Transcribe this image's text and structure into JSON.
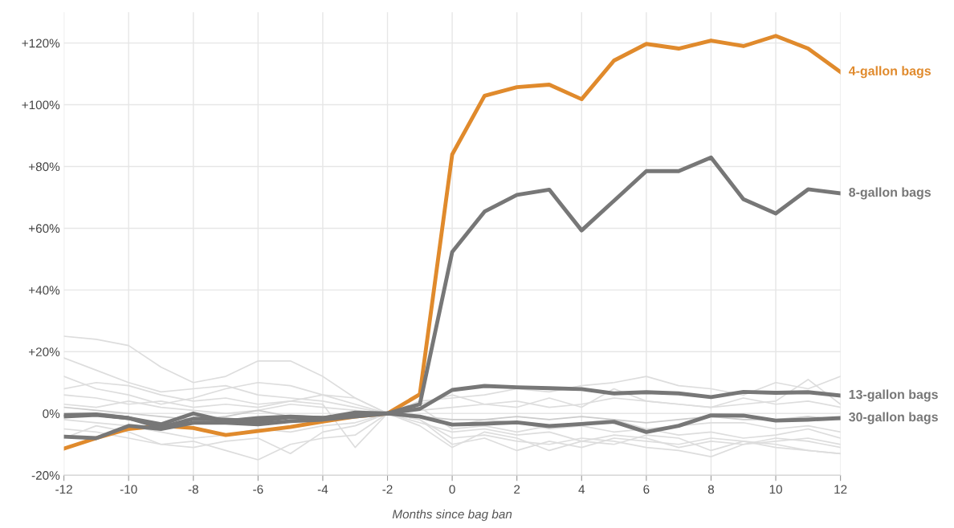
{
  "chart_data": {
    "type": "line",
    "xlabel": "Months since bag ban",
    "x": [
      -12,
      -11,
      -10,
      -9,
      -8,
      -7,
      -6,
      -5,
      -4,
      -3,
      -2,
      -1,
      0,
      1,
      2,
      3,
      4,
      5,
      6,
      7,
      8,
      9,
      10,
      11,
      12
    ],
    "xlim": [
      -12,
      12
    ],
    "xticks": [
      -12,
      -10,
      -8,
      -6,
      -4,
      -2,
      0,
      2,
      4,
      6,
      8,
      10,
      12
    ],
    "ylim": [
      -20,
      130
    ],
    "yticks": [
      {
        "value": -20,
        "label": "-20%"
      },
      {
        "value": 0,
        "label": "0%"
      },
      {
        "value": 20,
        "label": "+20%"
      },
      {
        "value": 40,
        "label": "+40%"
      },
      {
        "value": 60,
        "label": "+60%"
      },
      {
        "value": 80,
        "label": "+80%"
      },
      {
        "value": 100,
        "label": "+100%"
      },
      {
        "value": 120,
        "label": "+120%"
      }
    ],
    "grid": true,
    "marker": "none",
    "line_style": "solid",
    "series": [
      {
        "color": "#dddddd",
        "values": [
          25,
          24,
          22,
          15,
          10,
          12,
          17,
          17,
          12,
          5,
          0,
          2,
          -5,
          -4,
          -6,
          -4,
          -3,
          -2,
          -5,
          -4,
          -3,
          -3,
          -5,
          -4,
          -6
        ]
      },
      {
        "color": "#dddddd",
        "values": [
          12,
          8,
          6,
          3,
          5,
          8,
          10,
          9,
          6,
          3,
          0,
          -2,
          -10,
          -8,
          -12,
          -9,
          -11,
          -8,
          -9,
          -10,
          -8,
          -9,
          -10,
          -12,
          -13
        ]
      },
      {
        "color": "#dddddd",
        "values": [
          -5,
          -6,
          -8,
          -10,
          -9,
          -12,
          -15,
          -10,
          -8,
          -7,
          0,
          -3,
          -6,
          -5,
          -7,
          -6,
          -9,
          -7,
          -8,
          -11,
          -9,
          -10,
          -8,
          -9,
          -11
        ]
      },
      {
        "color": "#dddddd",
        "values": [
          8,
          10,
          9,
          6,
          4,
          5,
          3,
          4,
          6,
          5,
          0,
          4,
          5,
          6,
          8,
          7,
          9,
          10,
          12,
          9,
          8,
          6,
          10,
          8,
          12
        ]
      },
      {
        "color": "#dddddd",
        "values": [
          3,
          2,
          4,
          2,
          1,
          0,
          1,
          3,
          2,
          1,
          0,
          1,
          2,
          3,
          4,
          2,
          3,
          5,
          4,
          3,
          2,
          3,
          4,
          11,
          3
        ]
      },
      {
        "color": "#dddddd",
        "values": [
          18,
          14,
          10,
          7,
          8,
          9,
          6,
          5,
          4,
          2,
          0,
          -1,
          -4,
          -2,
          -3,
          -5,
          -4,
          -6,
          -5,
          -7,
          -6,
          -8,
          -7,
          -5,
          -8
        ]
      },
      {
        "color": "#dddddd",
        "values": [
          -2,
          -3,
          -4,
          -6,
          -8,
          -7,
          -5,
          -6,
          -4,
          -3,
          0,
          -2,
          -8,
          -7,
          -9,
          -10,
          -8,
          -9,
          -11,
          -12,
          -14,
          -10,
          -9,
          -8,
          -10
        ]
      },
      {
        "color": "#dddddd",
        "values": [
          6,
          5,
          3,
          4,
          2,
          3,
          2,
          4,
          3,
          -11,
          0,
          3,
          6,
          3,
          2,
          5,
          2,
          8,
          4,
          3,
          2,
          5,
          3,
          4,
          2
        ]
      },
      {
        "color": "#dddddd",
        "values": [
          -8,
          -4,
          -6,
          -10,
          -11,
          -9,
          -8,
          -13,
          -6,
          -4,
          0,
          -4,
          -11,
          -6,
          -8,
          -12,
          -9,
          -10,
          -7,
          -8,
          -12,
          -9,
          -11,
          -12,
          -13
        ]
      },
      {
        "color": "#cccccc",
        "values": [
          2,
          1,
          0,
          -1,
          -2,
          -1,
          1,
          -1,
          -1,
          0,
          0,
          -1,
          -2,
          -2,
          -1,
          -2,
          -1,
          -2,
          -3,
          -2,
          -1,
          -2,
          -2,
          -1,
          -2
        ]
      },
      {
        "name": "4-gallon bags",
        "color": "#e08a2c",
        "values": [
          -11.4,
          -8,
          -5,
          -4,
          -4.7,
          -7,
          -5.7,
          -4.4,
          -2.6,
          -1,
          0,
          6.2,
          83.9,
          102.9,
          105.7,
          106.5,
          101.8,
          114.3,
          119.7,
          118.2,
          120.8,
          119,
          122.3,
          118.2,
          110.6
        ]
      },
      {
        "name": "8-gallon bags",
        "color": "#777777",
        "values": [
          -7.5,
          -8,
          -4,
          -5,
          -3,
          -3,
          -3.5,
          -2.5,
          -2,
          -1,
          0,
          3,
          52.3,
          65.4,
          70.8,
          72.5,
          59.3,
          68.9,
          78.5,
          78.5,
          82.9,
          69.4,
          64.8,
          72.6,
          71.3
        ]
      },
      {
        "name": "13-gallon bags",
        "color": "#777777",
        "values": [
          -1,
          -0.5,
          -1.5,
          -4.5,
          -1.7,
          -2,
          -2.5,
          -1.2,
          -1.5,
          0.3,
          0,
          1.5,
          7.6,
          8.9,
          8.5,
          8.2,
          7.9,
          6.5,
          6.9,
          6.5,
          5.3,
          7.0,
          6.7,
          6.9,
          5.8
        ]
      },
      {
        "name": "30-gallon bags",
        "color": "#777777",
        "values": [
          -0.5,
          -0.3,
          -1.5,
          -3.5,
          0,
          -2.5,
          -1.5,
          -1,
          -1.5,
          -0.5,
          0,
          -1,
          -3.6,
          -3.3,
          -2.9,
          -4.1,
          -3.4,
          -2.7,
          -6.0,
          -4.0,
          -0.6,
          -0.7,
          -2.3,
          -2,
          -1.5
        ]
      }
    ]
  }
}
